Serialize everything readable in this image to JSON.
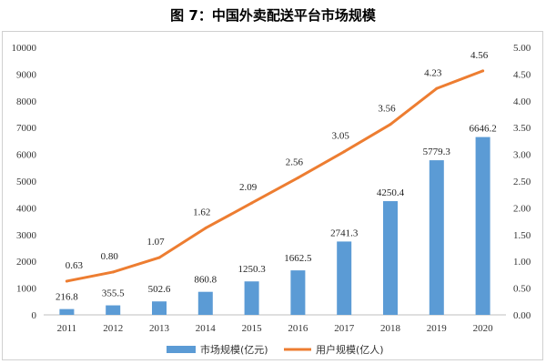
{
  "chart_data": {
    "type": "bar+line",
    "title": "图 7：中国外卖配送平台市场规模",
    "categories": [
      "2011",
      "2012",
      "2013",
      "2014",
      "2015",
      "2016",
      "2017",
      "2018",
      "2019",
      "2020"
    ],
    "series": [
      {
        "name": "市场规模(亿元)",
        "type": "bar",
        "axis": "left",
        "color": "#5b9bd5",
        "values": [
          216.8,
          355.5,
          502.6,
          860.8,
          1250.3,
          1662.5,
          2741.3,
          4250.4,
          5779.3,
          6646.2
        ],
        "labels": [
          "216.8",
          "355.5",
          "502.6",
          "860.8",
          "1250.3",
          "1662.5",
          "2741.3",
          "4250.4",
          "5779.3",
          "6646.2"
        ]
      },
      {
        "name": "用户规模(亿人)",
        "type": "line",
        "axis": "right",
        "color": "#ed7d31",
        "values": [
          0.63,
          0.8,
          1.07,
          1.62,
          2.09,
          2.56,
          3.05,
          3.56,
          4.23,
          4.56
        ],
        "labels": [
          "0.63",
          "0.80",
          "1.07",
          "1.62",
          "2.09",
          "2.56",
          "3.05",
          "3.56",
          "4.23",
          "4.56"
        ]
      }
    ],
    "y_left": {
      "ylim": [
        0,
        10000
      ],
      "ticks": [
        "0",
        "1000",
        "2000",
        "3000",
        "4000",
        "5000",
        "6000",
        "7000",
        "8000",
        "9000",
        "10000"
      ]
    },
    "y_right": {
      "ylim": [
        0,
        5
      ],
      "ticks": [
        "0.00",
        "0.50",
        "1.00",
        "1.50",
        "2.00",
        "2.50",
        "3.00",
        "3.50",
        "4.00",
        "4.50",
        "5.00"
      ]
    },
    "grid": false,
    "legend_position": "bottom"
  }
}
